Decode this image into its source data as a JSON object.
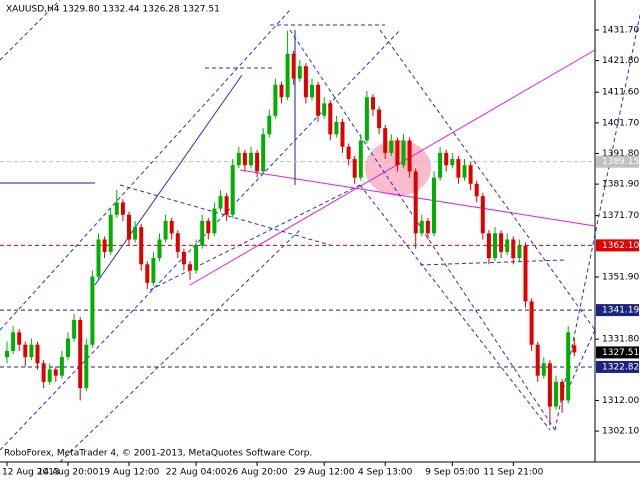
{
  "chart_data": {
    "type": "candlestick",
    "title": "XAUUSD,H4 1329.80 1332.44 1326.28 1327.51",
    "footer": "RoboForex, MetaTrader 4, © 2001-2013, MetaQuotes Software Corp.",
    "up_color": "#00b000",
    "down_color": "#e00000",
    "categories": [
      "12 Aug 2013",
      null,
      null,
      null,
      null,
      null,
      null,
      null,
      null,
      null,
      "14 Aug 20:00",
      null,
      null,
      null,
      null,
      null,
      null,
      null,
      null,
      null,
      "19 Aug 12:00",
      null,
      null,
      null,
      null,
      null,
      null,
      null,
      null,
      null,
      null,
      "22 Aug 04:00",
      null,
      null,
      null,
      null,
      null,
      null,
      null,
      null,
      null,
      "26 Aug 20:00",
      null,
      null,
      null,
      null,
      null,
      null,
      null,
      null,
      null,
      null,
      "29 Aug 12:00",
      null,
      null,
      null,
      null,
      null,
      null,
      null,
      null,
      null,
      "4 Sep 13:00",
      null,
      null,
      null,
      null,
      null,
      null,
      null,
      null,
      null,
      null,
      "9 Sep 05:00",
      null,
      null,
      null,
      null,
      null,
      null,
      null,
      null,
      null,
      "11 Sep 21:00",
      null,
      null,
      null,
      null,
      null,
      null,
      null,
      null,
      null,
      null
    ],
    "ohlc": [
      [
        1326,
        1331,
        1324,
        1328
      ],
      [
        1328,
        1336,
        1327,
        1334
      ],
      [
        1334,
        1335,
        1328,
        1330
      ],
      [
        1330,
        1331,
        1323,
        1326
      ],
      [
        1326,
        1332,
        1325,
        1330
      ],
      [
        1330,
        1331,
        1322,
        1324
      ],
      [
        1324,
        1325,
        1316,
        1318
      ],
      [
        1318,
        1324,
        1317,
        1322
      ],
      [
        1322,
        1323,
        1318,
        1320
      ],
      [
        1320,
        1328,
        1319,
        1326
      ],
      [
        1326,
        1334,
        1325,
        1332
      ],
      [
        1332,
        1340,
        1331,
        1338
      ],
      [
        1338,
        1339,
        1312,
        1316
      ],
      [
        1316,
        1332,
        1315,
        1330
      ],
      [
        1330,
        1354,
        1329,
        1352
      ],
      [
        1352,
        1366,
        1351,
        1364
      ],
      [
        1364,
        1365,
        1358,
        1360
      ],
      [
        1360,
        1374,
        1359,
        1372
      ],
      [
        1372,
        1380,
        1371,
        1376
      ],
      [
        1376,
        1377,
        1370,
        1372
      ],
      [
        1372,
        1373,
        1362,
        1364
      ],
      [
        1364,
        1370,
        1363,
        1368
      ],
      [
        1368,
        1369,
        1354,
        1356
      ],
      [
        1356,
        1357,
        1348,
        1350
      ],
      [
        1350,
        1360,
        1349,
        1358
      ],
      [
        1358,
        1366,
        1357,
        1364
      ],
      [
        1364,
        1372,
        1363,
        1370
      ],
      [
        1370,
        1371,
        1364,
        1366
      ],
      [
        1366,
        1367,
        1358,
        1360
      ],
      [
        1360,
        1361,
        1354,
        1356
      ],
      [
        1356,
        1357,
        1351,
        1354
      ],
      [
        1354,
        1364,
        1353,
        1362
      ],
      [
        1362,
        1372,
        1361,
        1370
      ],
      [
        1370,
        1371,
        1364,
        1366
      ],
      [
        1366,
        1376,
        1365,
        1374
      ],
      [
        1374,
        1380,
        1373,
        1378
      ],
      [
        1378,
        1379,
        1370,
        1372
      ],
      [
        1372,
        1390,
        1371,
        1388
      ],
      [
        1388,
        1394,
        1387,
        1392
      ],
      [
        1392,
        1393,
        1386,
        1388
      ],
      [
        1388,
        1394,
        1387,
        1392
      ],
      [
        1392,
        1393,
        1384,
        1386
      ],
      [
        1386,
        1400,
        1385,
        1398
      ],
      [
        1398,
        1406,
        1397,
        1404
      ],
      [
        1404,
        1416,
        1403,
        1414
      ],
      [
        1414,
        1415,
        1408,
        1410
      ],
      [
        1410,
        1431.5,
        1409,
        1424
      ],
      [
        1424,
        1425,
        1414,
        1416
      ],
      [
        1416,
        1422,
        1415,
        1420
      ],
      [
        1420,
        1421,
        1408,
        1410
      ],
      [
        1410,
        1416,
        1409,
        1414
      ],
      [
        1414,
        1415,
        1402,
        1404
      ],
      [
        1404,
        1410,
        1403,
        1408
      ],
      [
        1408,
        1409,
        1396,
        1398
      ],
      [
        1398,
        1404,
        1397,
        1402
      ],
      [
        1402,
        1403,
        1392,
        1394
      ],
      [
        1394,
        1395,
        1388,
        1390
      ],
      [
        1390,
        1391,
        1382,
        1384
      ],
      [
        1384,
        1398,
        1383,
        1396
      ],
      [
        1396,
        1412,
        1395,
        1410
      ],
      [
        1410,
        1411,
        1404,
        1406
      ],
      [
        1406,
        1407,
        1398,
        1400
      ],
      [
        1400,
        1401,
        1390,
        1392
      ],
      [
        1392,
        1398,
        1391,
        1396
      ],
      [
        1396,
        1397,
        1386,
        1388
      ],
      [
        1388,
        1398,
        1387,
        1396
      ],
      [
        1396,
        1397,
        1384,
        1386
      ],
      [
        1386,
        1387,
        1361,
        1366
      ],
      [
        1366,
        1372,
        1365,
        1370
      ],
      [
        1370,
        1371,
        1364,
        1366
      ],
      [
        1366,
        1386,
        1365,
        1384
      ],
      [
        1384,
        1394,
        1383,
        1392
      ],
      [
        1392,
        1393,
        1386,
        1388
      ],
      [
        1388,
        1392,
        1387,
        1390
      ],
      [
        1390,
        1391,
        1382,
        1384
      ],
      [
        1384,
        1390,
        1383,
        1388
      ],
      [
        1388,
        1389,
        1380,
        1382
      ],
      [
        1382,
        1383,
        1376,
        1378
      ],
      [
        1378,
        1379,
        1364,
        1366
      ],
      [
        1366,
        1367,
        1356,
        1358
      ],
      [
        1358,
        1368,
        1357,
        1366
      ],
      [
        1366,
        1367,
        1358,
        1360
      ],
      [
        1360,
        1366,
        1359,
        1364
      ],
      [
        1364,
        1365,
        1356,
        1358
      ],
      [
        1358,
        1364,
        1357,
        1362
      ],
      [
        1362,
        1363,
        1342,
        1344
      ],
      [
        1344,
        1345,
        1328,
        1330
      ],
      [
        1330,
        1331,
        1318,
        1320
      ],
      [
        1320,
        1326,
        1319,
        1324
      ],
      [
        1324,
        1325,
        1304,
        1310
      ],
      [
        1310,
        1320,
        1309,
        1318
      ],
      [
        1318,
        1319,
        1308,
        1312
      ],
      [
        1312,
        1336,
        1311,
        1334
      ],
      [
        1329.8,
        1332.44,
        1326.28,
        1327.51
      ]
    ],
    "ylim": [
      1292.1,
      1441.4
    ],
    "yticks": [
      {
        "value": 1431.7,
        "label": "1431.70"
      },
      {
        "value": 1421.8,
        "label": "1421.80"
      },
      {
        "value": 1411.6,
        "label": "1411.60"
      },
      {
        "value": 1401.7,
        "label": "1401.70"
      },
      {
        "value": 1391.8,
        "label": "1391.80"
      },
      {
        "value": 1381.9,
        "label": "1381.90"
      },
      {
        "value": 1371.7,
        "label": "1371.70"
      },
      {
        "value": 1351.9,
        "label": "1351.90"
      },
      {
        "value": 1331.8,
        "label": "1331.80"
      },
      {
        "value": 1312,
        "label": "1312.00"
      },
      {
        "value": 1302.1,
        "label": "1302.10"
      }
    ],
    "levels": [
      {
        "value": 1389.15,
        "label": "1389.15",
        "color": "#c0c0c0"
      },
      {
        "value": 1362.1,
        "label": "1362.10",
        "color": "#e00000"
      },
      {
        "value": 1341.19,
        "label": "1341.19",
        "color": "#1a237e"
      },
      {
        "value": 1322.82,
        "label": "1322.82",
        "color": "#1a237e"
      }
    ],
    "last_price": {
      "value": 1327.51,
      "label": "1327.51"
    }
  }
}
